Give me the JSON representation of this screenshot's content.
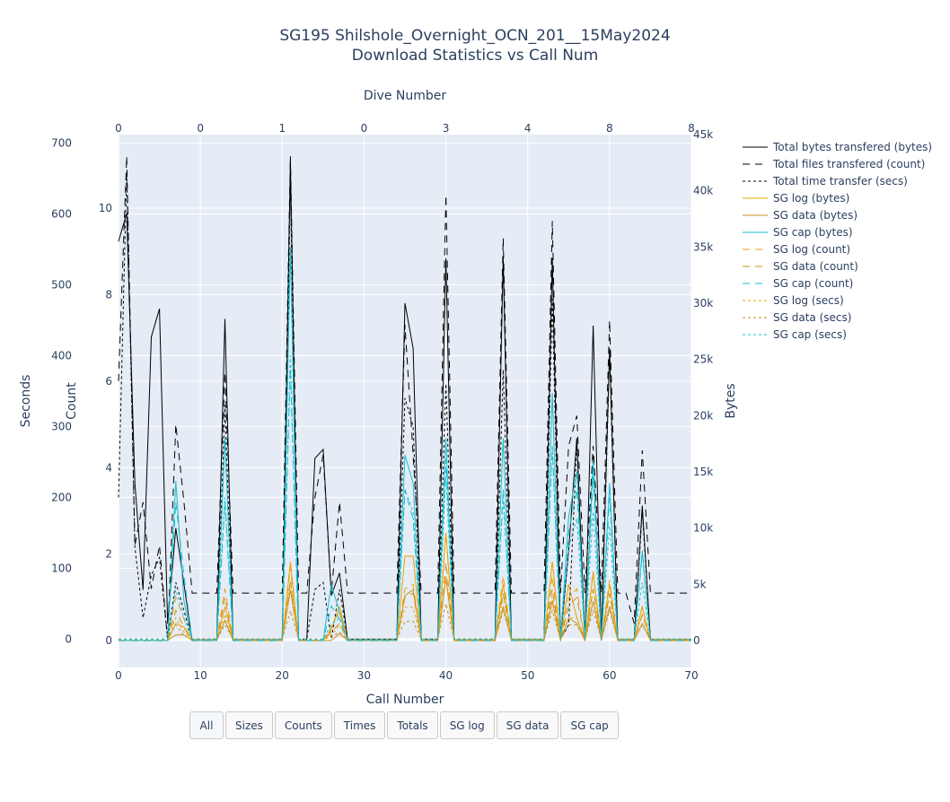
{
  "title": {
    "line1": "SG195 Shilshole_Overnight_OCN_201__15May2024",
    "line2": "Download Statistics vs Call Num"
  },
  "buttons": [
    "All",
    "Sizes",
    "Counts",
    "Times",
    "Totals",
    "SG log",
    "SG data",
    "SG cap"
  ],
  "active_button": "All",
  "chart_data": {
    "type": "line",
    "xlabel": "Call Number",
    "x_ticks": [
      0,
      10,
      20,
      30,
      40,
      50,
      60,
      70
    ],
    "xlim": [
      0,
      70
    ],
    "top_axis": {
      "label": "Dive Number",
      "ticks": [
        {
          "call": 0,
          "label": "0"
        },
        {
          "call": 10,
          "label": "0"
        },
        {
          "call": 20,
          "label": "1"
        },
        {
          "call": 30,
          "label": "0"
        },
        {
          "call": 40,
          "label": "3"
        },
        {
          "call": 50,
          "label": "4"
        },
        {
          "call": 60,
          "label": "8"
        },
        {
          "call": 70,
          "label": "8"
        }
      ]
    },
    "y_axes": {
      "seconds": {
        "label": "Seconds",
        "ticks": [
          0,
          100,
          200,
          300,
          400,
          500,
          600,
          700
        ],
        "range": [
          -40,
          712
        ]
      },
      "count": {
        "label": "Count",
        "ticks": [
          0,
          2,
          4,
          6,
          8,
          10
        ],
        "range": [
          -0.62,
          11.7
        ]
      },
      "bytes": {
        "label": "Bytes",
        "ticks": [
          0,
          5000,
          10000,
          15000,
          20000,
          25000,
          30000,
          35000,
          40000,
          45000
        ],
        "tick_labels": [
          "0",
          "5k",
          "10k",
          "15k",
          "20k",
          "25k",
          "30k",
          "35k",
          "40k",
          "45k"
        ],
        "range": [
          -2400,
          45000
        ]
      }
    },
    "grid": true,
    "legend_placement": "right",
    "colors": {
      "total": "#000000",
      "sg_log": "#e8a200",
      "sg_data": "#cc8f18",
      "sg_cap": "#17becf",
      "plot_bg": "#e5ecf6",
      "grid": "#ffffff"
    },
    "series": [
      {
        "name": "Total bytes transfered (bytes)",
        "axis": "bytes",
        "color": "#000000",
        "dash": "solid",
        "x": [
          0,
          1,
          2,
          3,
          4,
          5,
          6,
          7,
          8,
          9,
          12,
          13,
          14,
          20,
          21,
          22,
          23,
          24,
          25,
          26,
          27,
          28,
          34,
          35,
          36,
          37,
          39,
          40,
          41,
          46,
          47,
          48,
          52,
          53,
          54,
          55,
          56,
          57,
          58,
          59,
          60,
          61,
          63,
          64,
          65,
          70
        ],
        "y": [
          35500,
          38000,
          14000,
          4500,
          27000,
          29500,
          1500,
          10000,
          5000,
          0,
          0,
          28600,
          0,
          0,
          42800,
          0,
          0,
          16200,
          17000,
          4000,
          6000,
          0,
          0,
          30000,
          26000,
          0,
          0,
          34000,
          0,
          0,
          34000,
          0,
          0,
          34000,
          0,
          8000,
          18000,
          0,
          28000,
          0,
          26000,
          0,
          0,
          12000,
          0,
          0
        ]
      },
      {
        "name": "Total files transfered (count)",
        "axis": "count",
        "color": "#000000",
        "dash": "long",
        "x": [
          0,
          1,
          2,
          3,
          4,
          5,
          6,
          7,
          8,
          9,
          12,
          13,
          14,
          20,
          21,
          22,
          23,
          24,
          25,
          26,
          27,
          28,
          34,
          35,
          36,
          37,
          39,
          40,
          41,
          46,
          47,
          48,
          52,
          53,
          54,
          55,
          56,
          57,
          58,
          59,
          60,
          61,
          62,
          63,
          64,
          65,
          70
        ],
        "y": [
          6,
          11.2,
          2.2,
          3.2,
          1.2,
          2.2,
          0,
          5,
          3.2,
          1.1,
          1.1,
          6.2,
          1.1,
          1.1,
          11.2,
          1.1,
          1.1,
          3.3,
          4.3,
          1.1,
          3.2,
          1.1,
          1.1,
          7.3,
          4.3,
          1.1,
          1.1,
          10.3,
          1.1,
          1.1,
          9.3,
          1.1,
          1.1,
          9.7,
          1.1,
          4.5,
          5.2,
          1.1,
          4.5,
          1.1,
          7.4,
          1.1,
          1.1,
          0.4,
          4.4,
          1.1,
          1.1
        ]
      },
      {
        "name": "Total time transfer (secs)",
        "axis": "seconds",
        "color": "#000000",
        "dash": "dot",
        "x": [
          0,
          1,
          2,
          3,
          4,
          5,
          6,
          7,
          8,
          9,
          12,
          13,
          14,
          20,
          21,
          22,
          23,
          24,
          25,
          26,
          27,
          28,
          34,
          35,
          36,
          37,
          39,
          40,
          41,
          46,
          47,
          48,
          52,
          53,
          54,
          55,
          56,
          57,
          58,
          59,
          60,
          61,
          63,
          64,
          65,
          70
        ],
        "y": [
          200,
          660,
          130,
          30,
          90,
          115,
          0,
          80,
          40,
          0,
          0,
          330,
          0,
          0,
          640,
          0,
          0,
          70,
          80,
          0,
          70,
          0,
          0,
          340,
          300,
          0,
          0,
          360,
          0,
          0,
          380,
          0,
          0,
          480,
          0,
          20,
          275,
          0,
          260,
          0,
          400,
          0,
          0,
          180,
          0,
          0
        ]
      },
      {
        "name": "SG log (bytes)",
        "axis": "bytes",
        "color": "#e8a200",
        "dash": "solid",
        "x": [
          0,
          5,
          6,
          7,
          8,
          9,
          12,
          13,
          14,
          20,
          21,
          22,
          25,
          26,
          27,
          28,
          34,
          35,
          36,
          37,
          39,
          40,
          41,
          46,
          47,
          48,
          52,
          53,
          54,
          55,
          56,
          57,
          58,
          59,
          60,
          61,
          63,
          64,
          65,
          70
        ],
        "y": [
          0,
          0,
          0,
          1500,
          1200,
          0,
          0,
          3000,
          0,
          0,
          7000,
          0,
          0,
          1000,
          3000,
          0,
          0,
          7500,
          7500,
          0,
          0,
          9500,
          0,
          0,
          5000,
          0,
          0,
          7000,
          0,
          5000,
          2000,
          0,
          6000,
          0,
          5000,
          0,
          0,
          3000,
          0,
          0
        ]
      },
      {
        "name": "SG data (bytes)",
        "axis": "bytes",
        "color": "#cc8f18",
        "dash": "solid",
        "x": [
          0,
          6,
          7,
          8,
          9,
          12,
          13,
          14,
          20,
          21,
          22,
          25,
          26,
          27,
          28,
          34,
          35,
          36,
          37,
          39,
          40,
          41,
          46,
          47,
          48,
          52,
          53,
          54,
          55,
          56,
          57,
          58,
          59,
          60,
          61,
          63,
          64,
          65,
          70
        ],
        "y": [
          0,
          0,
          500,
          500,
          0,
          0,
          1800,
          0,
          0,
          4500,
          0,
          0,
          0,
          600,
          0,
          0,
          4000,
          4500,
          0,
          0,
          5500,
          0,
          0,
          3000,
          0,
          0,
          3500,
          0,
          2000,
          1500,
          0,
          3500,
          0,
          3000,
          0,
          0,
          1500,
          0,
          0
        ]
      },
      {
        "name": "SG cap (bytes)",
        "axis": "bytes",
        "color": "#17becf",
        "dash": "solid",
        "x": [
          0,
          5,
          6,
          7,
          8,
          9,
          12,
          13,
          14,
          20,
          21,
          22,
          25,
          26,
          27,
          28,
          34,
          35,
          36,
          37,
          39,
          40,
          41,
          46,
          47,
          48,
          52,
          53,
          54,
          55,
          56,
          57,
          58,
          59,
          60,
          61,
          63,
          64,
          65,
          70
        ],
        "y": [
          0,
          0,
          0,
          14200,
          3500,
          0,
          0,
          18000,
          0,
          0,
          35000,
          0,
          0,
          5000,
          2500,
          0,
          0,
          16500,
          14000,
          0,
          0,
          18000,
          0,
          0,
          18000,
          0,
          0,
          22000,
          0,
          11000,
          15000,
          0,
          16000,
          0,
          14000,
          0,
          0,
          8000,
          0,
          0
        ]
      },
      {
        "name": "SG log (count)",
        "axis": "count",
        "color": "#e8a200",
        "dash": "long",
        "x": [
          0,
          6,
          7,
          8,
          9,
          12,
          13,
          14,
          20,
          21,
          22,
          25,
          26,
          27,
          28,
          34,
          35,
          36,
          37,
          39,
          40,
          41,
          46,
          47,
          48,
          52,
          53,
          54,
          55,
          56,
          57,
          58,
          59,
          60,
          61,
          63,
          64,
          65,
          70
        ],
        "y": [
          0,
          0,
          1,
          0.5,
          0,
          0,
          1.2,
          0,
          0,
          1.7,
          0,
          0,
          0.3,
          0.7,
          0,
          0,
          1.2,
          1.3,
          0,
          0,
          2.5,
          0,
          0,
          1.5,
          0,
          0,
          1.5,
          0,
          1,
          1.2,
          0,
          1.6,
          0,
          1.4,
          0,
          0,
          0.8,
          0,
          0
        ]
      },
      {
        "name": "SG data (count)",
        "axis": "count",
        "color": "#cc8f18",
        "dash": "long",
        "x": [
          0,
          6,
          7,
          8,
          9,
          12,
          13,
          14,
          20,
          21,
          22,
          25,
          26,
          27,
          28,
          34,
          35,
          36,
          37,
          39,
          40,
          41,
          46,
          47,
          48,
          52,
          53,
          54,
          55,
          56,
          57,
          58,
          59,
          60,
          61,
          63,
          64,
          65,
          70
        ],
        "y": [
          0,
          0,
          0.7,
          0.3,
          0,
          0,
          1,
          0,
          0,
          1.4,
          0,
          0,
          0.2,
          0.4,
          0,
          0,
          1,
          1.1,
          0,
          0,
          1.8,
          0,
          0,
          1.1,
          0,
          0,
          1.2,
          0,
          0.8,
          1,
          0,
          1.2,
          0,
          1.1,
          0,
          0,
          0.6,
          0,
          0
        ]
      },
      {
        "name": "SG cap (count)",
        "axis": "count",
        "color": "#17becf",
        "dash": "long",
        "x": [
          0,
          6,
          7,
          8,
          9,
          12,
          13,
          14,
          20,
          21,
          22,
          25,
          26,
          27,
          28,
          34,
          35,
          36,
          37,
          39,
          40,
          41,
          46,
          47,
          48,
          52,
          53,
          54,
          55,
          56,
          57,
          58,
          59,
          60,
          61,
          63,
          64,
          65,
          70
        ],
        "y": [
          0,
          0,
          3.2,
          1.5,
          0,
          0,
          3.2,
          0,
          0,
          6.3,
          0,
          0,
          0.8,
          0.5,
          0,
          0,
          3.5,
          2.8,
          0,
          0,
          4.2,
          0,
          0,
          3.5,
          0,
          0,
          4.5,
          0,
          2.5,
          3.5,
          0,
          3.8,
          0,
          3.3,
          0,
          0,
          2,
          0,
          0
        ]
      },
      {
        "name": "SG log (secs)",
        "axis": "seconds",
        "color": "#e8a200",
        "dash": "dot",
        "x": [
          0,
          6,
          7,
          8,
          9,
          12,
          13,
          14,
          20,
          21,
          22,
          25,
          26,
          27,
          28,
          34,
          35,
          36,
          37,
          39,
          40,
          41,
          46,
          47,
          48,
          52,
          53,
          54,
          55,
          56,
          57,
          58,
          59,
          60,
          61,
          63,
          64,
          65,
          70
        ],
        "y": [
          0,
          0,
          30,
          10,
          0,
          0,
          35,
          0,
          0,
          80,
          0,
          0,
          5,
          20,
          0,
          0,
          45,
          45,
          0,
          0,
          90,
          0,
          0,
          60,
          0,
          0,
          60,
          0,
          30,
          30,
          0,
          70,
          0,
          60,
          0,
          0,
          35,
          0,
          0
        ]
      },
      {
        "name": "SG data (secs)",
        "axis": "seconds",
        "color": "#cc8f18",
        "dash": "dot",
        "x": [
          0,
          6,
          7,
          8,
          9,
          12,
          13,
          14,
          20,
          21,
          22,
          25,
          26,
          27,
          28,
          34,
          35,
          36,
          37,
          39,
          40,
          41,
          46,
          47,
          48,
          52,
          53,
          54,
          55,
          56,
          57,
          58,
          59,
          60,
          61,
          63,
          64,
          65,
          70
        ],
        "y": [
          0,
          0,
          20,
          5,
          0,
          0,
          20,
          0,
          0,
          40,
          0,
          0,
          3,
          10,
          0,
          0,
          25,
          25,
          0,
          0,
          50,
          0,
          0,
          40,
          0,
          0,
          40,
          0,
          20,
          20,
          0,
          40,
          0,
          40,
          0,
          0,
          20,
          0,
          0
        ]
      },
      {
        "name": "SG cap (secs)",
        "axis": "seconds",
        "color": "#17becf",
        "dash": "dot",
        "x": [
          0,
          6,
          7,
          8,
          9,
          12,
          13,
          14,
          20,
          21,
          22,
          25,
          26,
          27,
          28,
          34,
          35,
          36,
          37,
          39,
          40,
          41,
          46,
          47,
          48,
          52,
          53,
          54,
          55,
          56,
          57,
          58,
          59,
          60,
          61,
          63,
          64,
          65,
          70
        ],
        "y": [
          0,
          0,
          70,
          30,
          0,
          0,
          200,
          0,
          0,
          400,
          0,
          0,
          20,
          30,
          0,
          0,
          210,
          180,
          0,
          0,
          230,
          0,
          0,
          200,
          0,
          0,
          270,
          0,
          130,
          170,
          0,
          180,
          0,
          160,
          0,
          0,
          80,
          0,
          0
        ]
      }
    ]
  }
}
